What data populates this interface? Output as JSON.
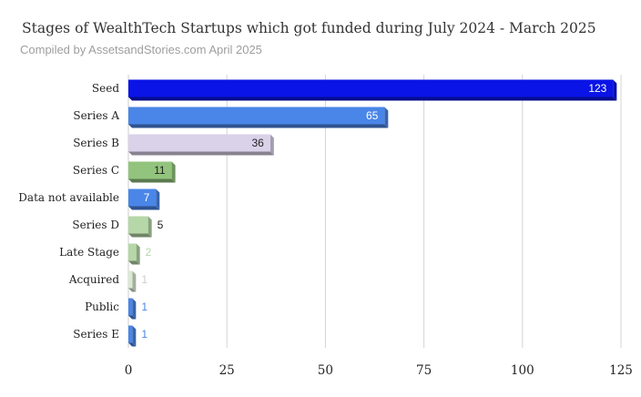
{
  "chart_data": {
    "type": "bar",
    "orientation": "horizontal",
    "title": "Stages of WealthTech Startups which got funded during July 2024 - March 2025",
    "subtitle": "Compiled by AssetsandStories.com April 2025",
    "categories": [
      "Seed",
      "Series A",
      "Series B",
      "Series C",
      "Data not available",
      "Series D",
      "Late Stage",
      "Acquired",
      "Public",
      "Series E"
    ],
    "values": [
      123,
      65,
      36,
      11,
      7,
      5,
      2,
      1,
      1,
      1
    ],
    "colors": [
      "#0a14e6",
      "#4a86e8",
      "#d9d2e9",
      "#93c47d",
      "#4a86e8",
      "#b6d7a8",
      "#b6d7a8",
      "#d9ead3",
      "#4a86e8",
      "#4a86e8"
    ],
    "label_colors": [
      "#ffffff",
      "#ffffff",
      "#222222",
      "#222222",
      "#ffffff",
      "#222222",
      "#b6d7a8",
      "#cccccc",
      "#4a86e8",
      "#4a86e8"
    ],
    "xlim": [
      0,
      125
    ],
    "xticks": [
      0,
      25,
      50,
      75,
      100,
      125
    ],
    "xlabel": "",
    "ylabel": "",
    "grid": true,
    "legend": "none"
  }
}
